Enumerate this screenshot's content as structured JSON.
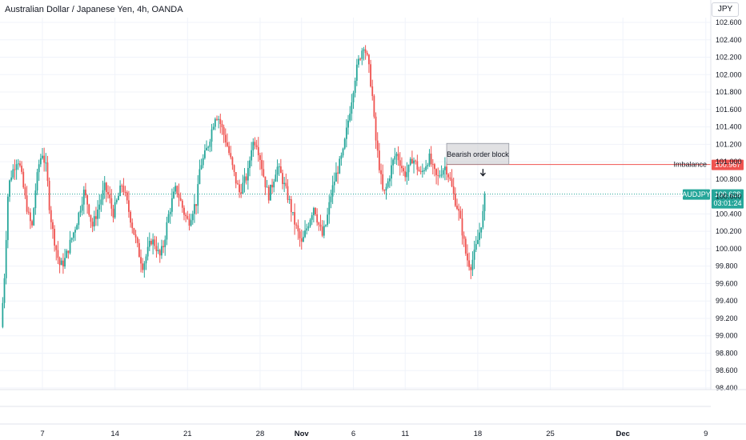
{
  "header": {
    "symbol_title": "Australian Dollar / Japanese Yen, 4h, OANDA",
    "currency": "JPY"
  },
  "colors": {
    "up": "#26a69a",
    "down": "#ef5350",
    "grid": "#f0f3fa",
    "text": "#131722"
  },
  "chart_data": {
    "type": "candlestick",
    "symbol": "AUDJPY",
    "yaxis": {
      "ticks": [
        "102.600",
        "102.400",
        "102.200",
        "102.000",
        "101.800",
        "101.600",
        "101.400",
        "101.200",
        "101.000",
        "100.800",
        "100.600",
        "100.400",
        "100.200",
        "100.000",
        "99.800",
        "99.600",
        "99.400",
        "99.200",
        "99.000",
        "98.800",
        "98.600",
        "98.400"
      ],
      "ylim": [
        98.4,
        102.6
      ]
    },
    "xaxis": {
      "ticks": [
        {
          "label": "7",
          "day": 7
        },
        {
          "label": "14",
          "day": 14
        },
        {
          "label": "21",
          "day": 21
        },
        {
          "label": "28",
          "day": 28
        },
        {
          "label": "Nov",
          "day": 32
        },
        {
          "label": "6",
          "day": 37
        },
        {
          "label": "11",
          "day": 42
        },
        {
          "label": "18",
          "day": 49
        },
        {
          "label": "25",
          "day": 56
        },
        {
          "label": "Dec",
          "day": 63
        },
        {
          "label": "9",
          "day": 71
        }
      ]
    },
    "price_anchors": [
      [
        3.0,
        99.1
      ],
      [
        3.3,
        99.6
      ],
      [
        3.7,
        100.7
      ],
      [
        4.0,
        100.85
      ],
      [
        4.3,
        100.95
      ],
      [
        4.6,
        101.05
      ],
      [
        4.9,
        100.9
      ],
      [
        5.3,
        100.6
      ],
      [
        5.7,
        100.35
      ],
      [
        6.0,
        100.25
      ],
      [
        6.3,
        100.65
      ],
      [
        6.7,
        101.0
      ],
      [
        7.0,
        101.1
      ],
      [
        7.4,
        100.9
      ],
      [
        7.7,
        100.45
      ],
      [
        8.0,
        100.2
      ],
      [
        8.4,
        99.95
      ],
      [
        8.7,
        99.8
      ],
      [
        9.1,
        99.85
      ],
      [
        9.5,
        100.0
      ],
      [
        9.9,
        100.15
      ],
      [
        10.3,
        100.3
      ],
      [
        10.7,
        100.5
      ],
      [
        11.0,
        100.65
      ],
      [
        11.4,
        100.5
      ],
      [
        11.8,
        100.25
      ],
      [
        12.2,
        100.4
      ],
      [
        12.6,
        100.55
      ],
      [
        13.0,
        100.7
      ],
      [
        13.4,
        100.6
      ],
      [
        13.8,
        100.4
      ],
      [
        14.2,
        100.55
      ],
      [
        14.7,
        100.75
      ],
      [
        15.1,
        100.55
      ],
      [
        15.5,
        100.35
      ],
      [
        15.9,
        100.15
      ],
      [
        16.3,
        99.95
      ],
      [
        16.7,
        99.8
      ],
      [
        17.1,
        99.95
      ],
      [
        17.5,
        100.1
      ],
      [
        17.9,
        100.05
      ],
      [
        18.3,
        99.9
      ],
      [
        18.7,
        100.05
      ],
      [
        19.1,
        100.35
      ],
      [
        19.5,
        100.55
      ],
      [
        19.9,
        100.7
      ],
      [
        20.3,
        100.55
      ],
      [
        20.7,
        100.4
      ],
      [
        21.1,
        100.3
      ],
      [
        21.5,
        100.45
      ],
      [
        21.9,
        100.55
      ],
      [
        22.2,
        100.95
      ],
      [
        22.6,
        101.05
      ],
      [
        23.0,
        101.2
      ],
      [
        23.4,
        101.4
      ],
      [
        23.7,
        101.55
      ],
      [
        24.0,
        101.5
      ],
      [
        24.4,
        101.35
      ],
      [
        24.8,
        101.2
      ],
      [
        25.2,
        101.0
      ],
      [
        25.6,
        100.8
      ],
      [
        26.0,
        100.65
      ],
      [
        26.4,
        100.75
      ],
      [
        26.8,
        100.85
      ],
      [
        27.2,
        101.2
      ],
      [
        27.6,
        101.25
      ],
      [
        28.0,
        101.05
      ],
      [
        28.4,
        100.8
      ],
      [
        28.8,
        100.6
      ],
      [
        29.2,
        100.75
      ],
      [
        29.6,
        100.95
      ],
      [
        30.0,
        100.85
      ],
      [
        30.4,
        100.7
      ],
      [
        30.8,
        100.55
      ],
      [
        31.2,
        100.35
      ],
      [
        31.6,
        100.2
      ],
      [
        32.0,
        100.05
      ],
      [
        32.4,
        100.2
      ],
      [
        32.8,
        100.35
      ],
      [
        33.2,
        100.5
      ],
      [
        33.6,
        100.3
      ],
      [
        34.0,
        100.15
      ],
      [
        34.4,
        100.3
      ],
      [
        34.8,
        100.6
      ],
      [
        35.2,
        100.8
      ],
      [
        35.6,
        100.95
      ],
      [
        36.0,
        101.1
      ],
      [
        36.4,
        101.4
      ],
      [
        36.8,
        101.7
      ],
      [
        37.2,
        102.0
      ],
      [
        37.6,
        102.2
      ],
      [
        38.0,
        102.35
      ],
      [
        38.4,
        102.15
      ],
      [
        38.8,
        101.8
      ],
      [
        39.1,
        101.3
      ],
      [
        39.5,
        100.95
      ],
      [
        39.9,
        100.6
      ],
      [
        40.3,
        100.75
      ],
      [
        40.7,
        100.95
      ],
      [
        41.1,
        101.1
      ],
      [
        41.5,
        101.0
      ],
      [
        41.9,
        100.85
      ],
      [
        42.3,
        100.9
      ],
      [
        42.7,
        101.05
      ],
      [
        43.1,
        100.95
      ],
      [
        43.5,
        100.85
      ],
      [
        43.9,
        100.95
      ],
      [
        44.3,
        101.05
      ],
      [
        44.7,
        100.9
      ],
      [
        45.1,
        100.8
      ],
      [
        45.5,
        100.9
      ],
      [
        45.9,
        100.95
      ],
      [
        46.3,
        100.8
      ],
      [
        46.7,
        100.6
      ],
      [
        47.1,
        100.45
      ],
      [
        47.5,
        100.2
      ],
      [
        47.9,
        99.9
      ],
      [
        48.3,
        99.8
      ],
      [
        48.7,
        99.95
      ],
      [
        49.1,
        100.15
      ],
      [
        49.5,
        100.4
      ],
      [
        49.8,
        100.63
      ]
    ],
    "reference_lines": [
      {
        "price": 100.967,
        "label": "Imbalance",
        "value_label": "100.967",
        "color": "#ef5350"
      },
      {
        "price": 100.628,
        "label": "AUDJPY",
        "value_label": "100.628",
        "countdown": "03:01:24",
        "color": "#26a69a"
      }
    ],
    "annotation": {
      "label": "Bearish order block",
      "top": 101.21,
      "bottom": 100.97,
      "start_day": 46.0,
      "end_day": 52.0
    },
    "arrow_marker": {
      "direction": "down",
      "price": 100.88,
      "day": 49.5
    }
  }
}
